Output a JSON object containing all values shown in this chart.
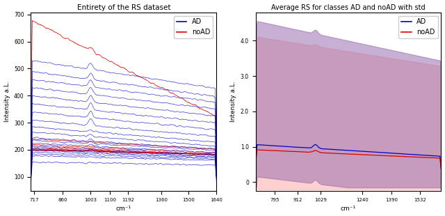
{
  "title_left": "Entirety of the RS dataset",
  "title_right": "Average RS for classes AD and noAD with std",
  "xlabel": "cm⁻¹",
  "ylabel_left": "Intensity a.L.",
  "ylabel_right": "Intensity a.L.",
  "ad_color": "#0000cc",
  "noad_color": "#dd0000",
  "ad_fill_color": "#9970b0",
  "noad_fill_color": "#ffaaaa",
  "ad_fill_alpha": 0.55,
  "noad_fill_alpha": 0.55,
  "linewidth": 0.5,
  "seed": 7
}
